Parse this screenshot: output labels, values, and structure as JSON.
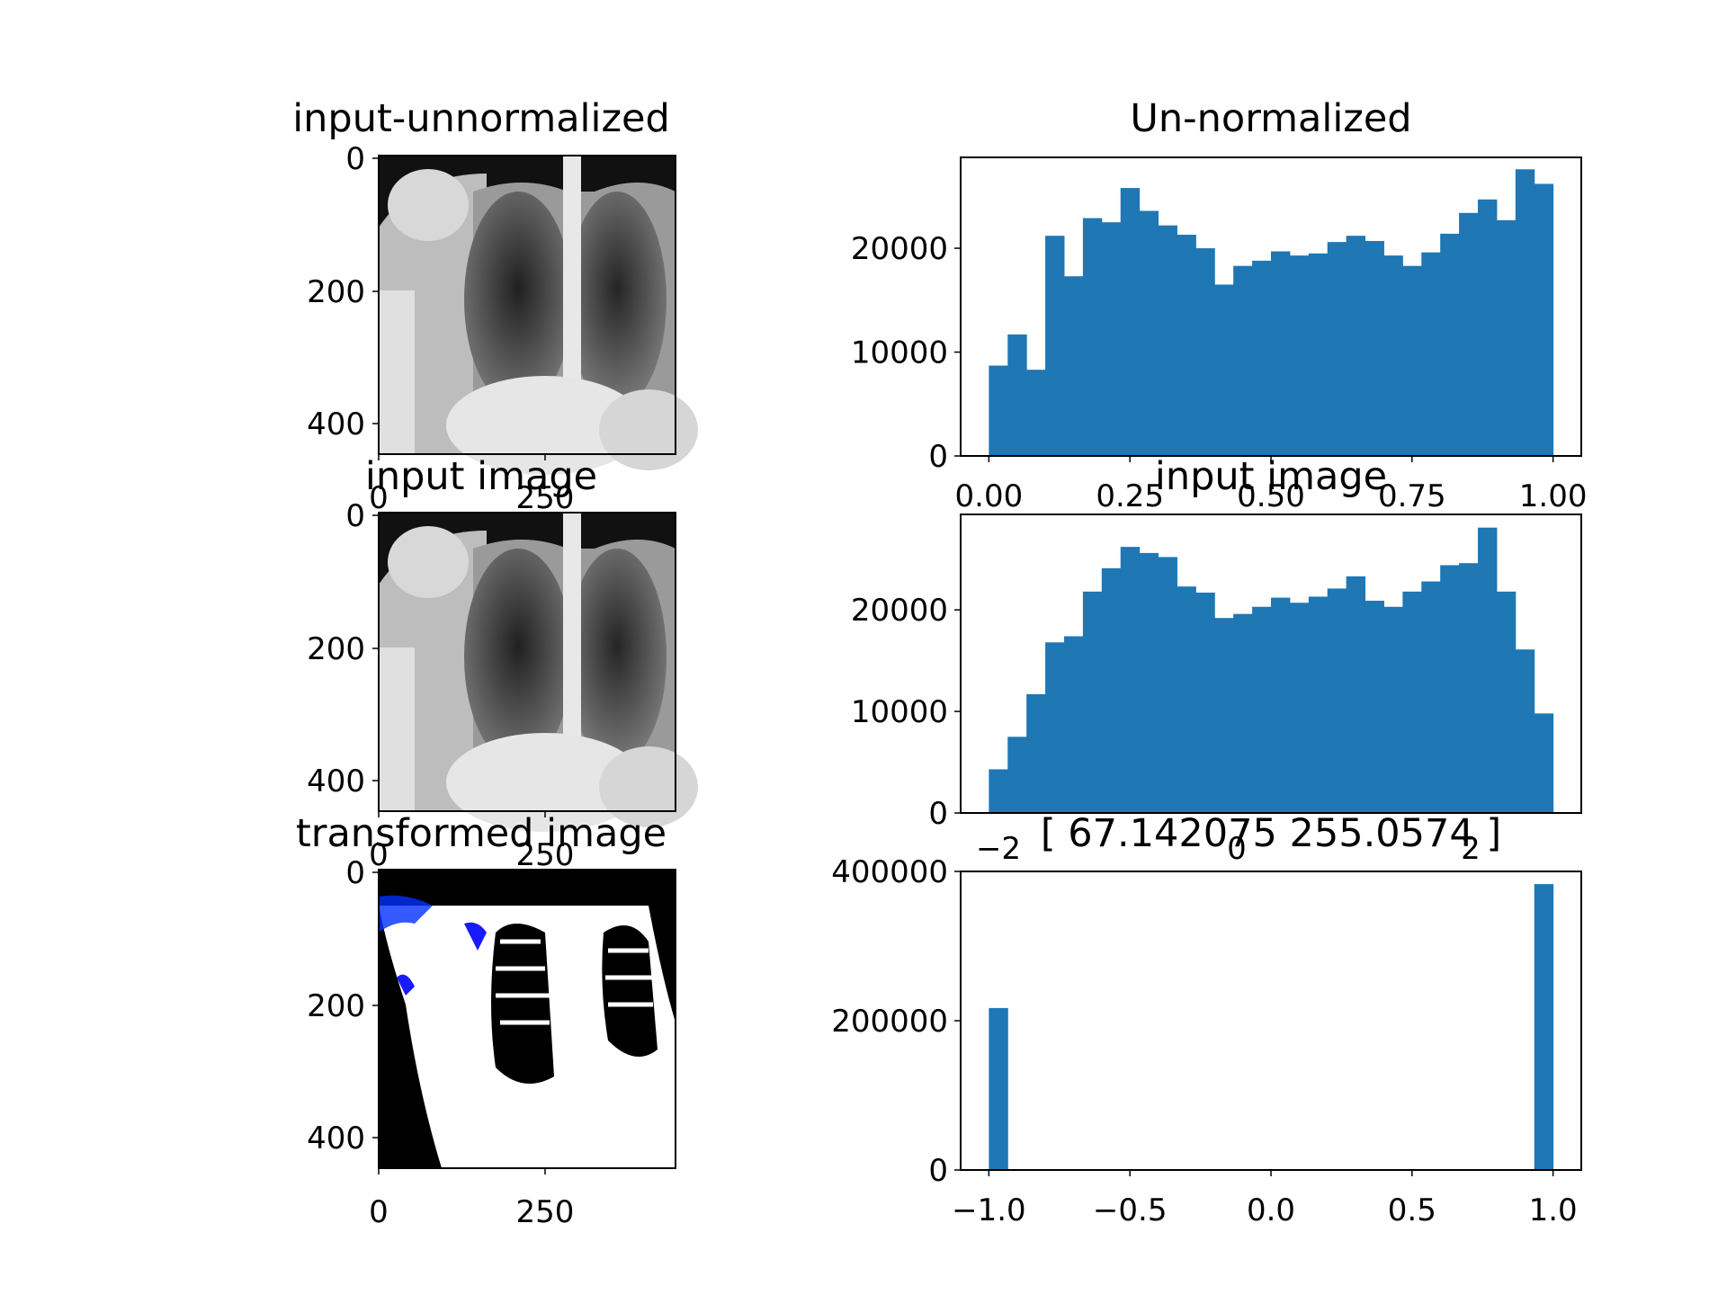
{
  "figure": {
    "background": "#ffffff",
    "bar_color": "#1f77b4",
    "panels_left": [
      {
        "title": "input-unnormalized",
        "xticks": [
          "0",
          "250"
        ],
        "yticks": [
          "0",
          "200",
          "400"
        ],
        "image": "chest x-ray (grayscale)"
      },
      {
        "title": "input image",
        "xticks": [
          "0",
          "250"
        ],
        "yticks": [
          "0",
          "200",
          "400"
        ],
        "image": "chest x-ray (grayscale)"
      },
      {
        "title": "transformed image",
        "xticks": [
          "0",
          "250"
        ],
        "yticks": [
          "0",
          "200",
          "400"
        ],
        "image": "thresholded chest x-ray (black / white / blue)"
      }
    ]
  },
  "chart_data": [
    {
      "type": "bar",
      "title": "Un-normalized",
      "xlabel": "",
      "ylabel": "",
      "xlim": [
        -0.05,
        1.05
      ],
      "ylim": [
        0,
        28750
      ],
      "xticks": [
        "0.00",
        "0.25",
        "0.50",
        "0.75",
        "1.00"
      ],
      "yticks": [
        "0",
        "10000",
        "20000"
      ],
      "bins": 30,
      "bin_range": [
        0,
        1
      ],
      "values": [
        8700,
        11700,
        8300,
        21200,
        17300,
        22900,
        22500,
        25800,
        23600,
        22200,
        21300,
        20000,
        16500,
        18300,
        18800,
        19700,
        19300,
        19500,
        20600,
        21200,
        20700,
        19300,
        18300,
        19600,
        21400,
        23400,
        24700,
        22700,
        27600,
        26200
      ]
    },
    {
      "type": "bar",
      "title": "input image",
      "xlabel": "",
      "ylabel": "",
      "xlim": [
        -0.05,
        1.05
      ],
      "ylim": [
        0,
        29400
      ],
      "xticks": [],
      "yticks": [
        "0",
        "10000",
        "20000"
      ],
      "bins": 30,
      "bin_range": [
        0,
        1
      ],
      "values": [
        4300,
        7500,
        11700,
        16800,
        17400,
        21800,
        24100,
        26200,
        25600,
        25200,
        22300,
        21700,
        19200,
        19600,
        20300,
        21200,
        20700,
        21300,
        22100,
        23300,
        20900,
        20300,
        21800,
        22800,
        24400,
        24600,
        28100,
        21800,
        16100,
        9800
      ]
    },
    {
      "type": "bar",
      "title": "[ 67.142075 255.0574  ]",
      "title_overlay_ticks": [
        "−2",
        "0",
        "2"
      ],
      "xlabel": "",
      "ylabel": "",
      "xlim": [
        -1.1,
        1.1
      ],
      "ylim": [
        0,
        400000
      ],
      "xticks": [
        "−1.0",
        "−0.5",
        "0.0",
        "0.5",
        "1.0"
      ],
      "yticks": [
        "0",
        "200000",
        "400000"
      ],
      "bins": 30,
      "bin_range": [
        -1,
        1
      ],
      "values": [
        217000,
        0,
        0,
        0,
        0,
        0,
        0,
        0,
        0,
        0,
        0,
        0,
        0,
        0,
        0,
        0,
        0,
        0,
        0,
        0,
        0,
        0,
        0,
        0,
        0,
        0,
        0,
        0,
        0,
        383000
      ]
    }
  ]
}
